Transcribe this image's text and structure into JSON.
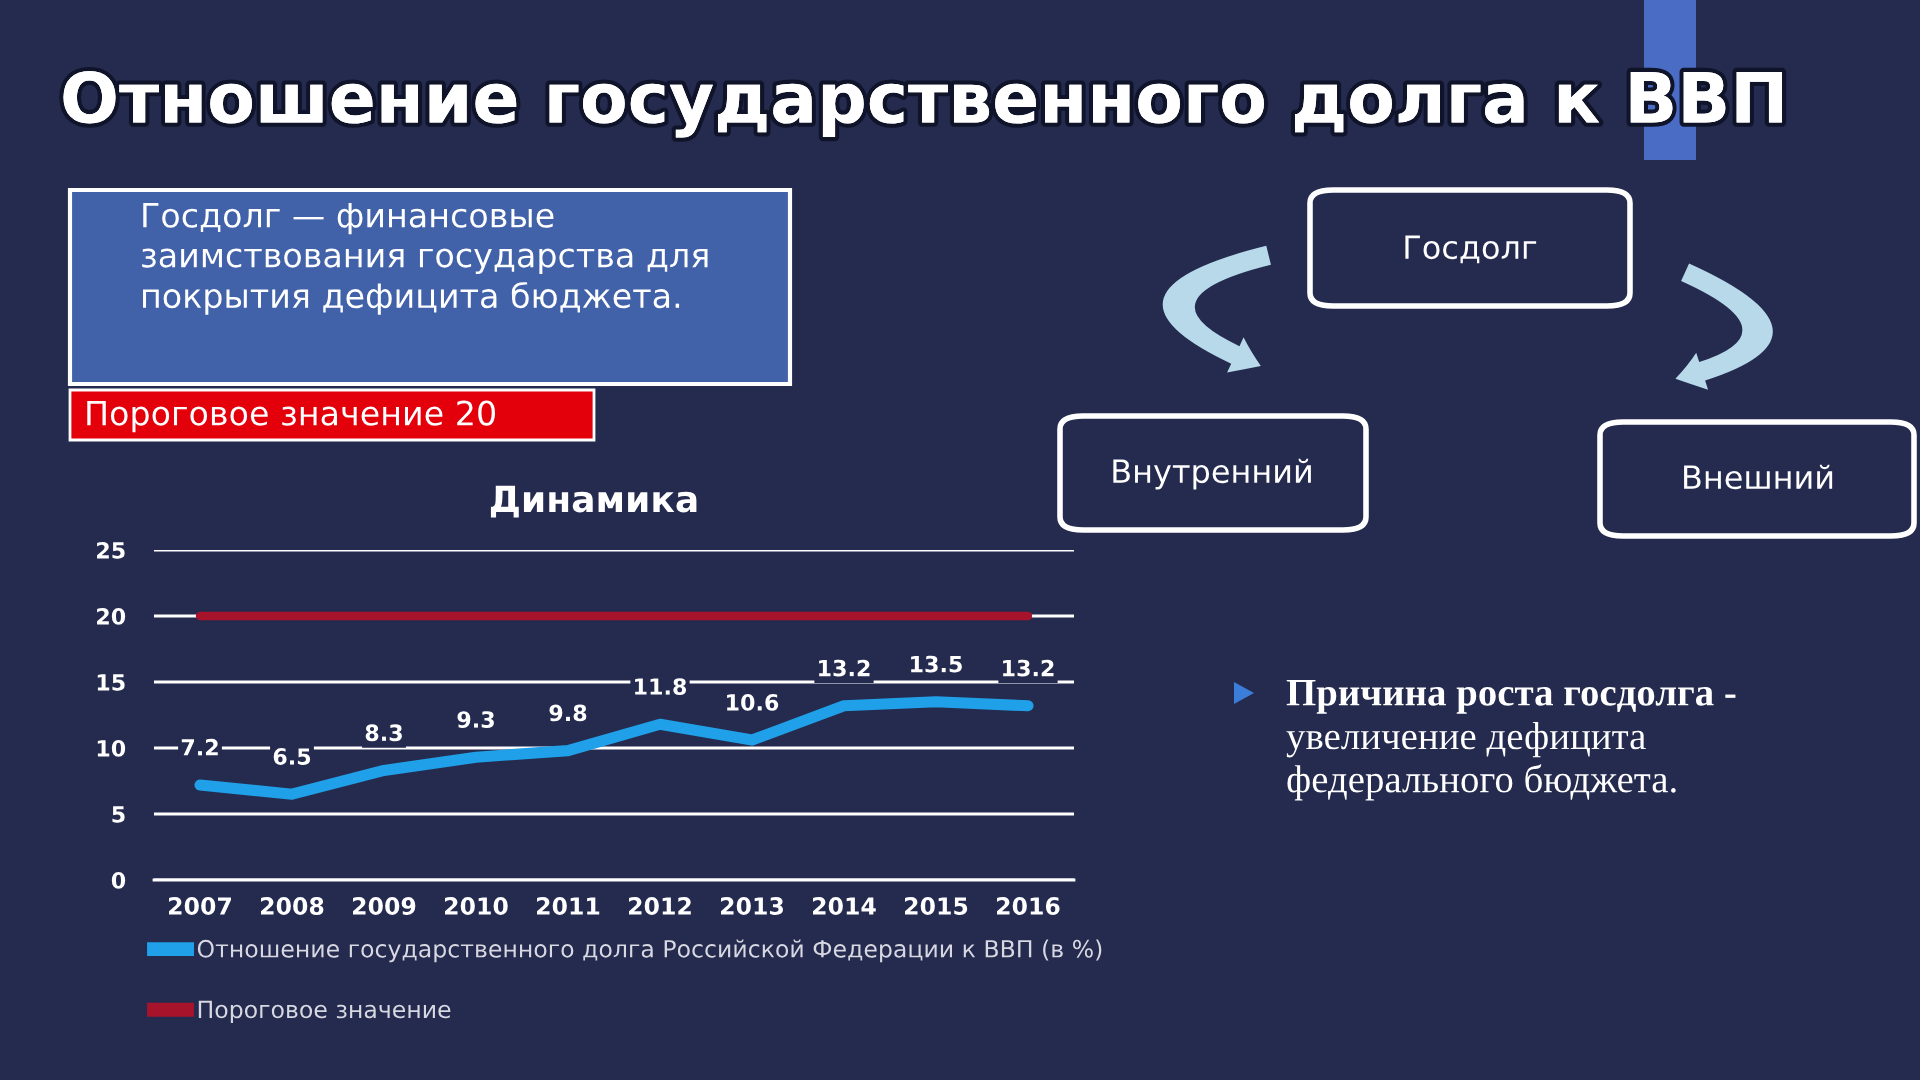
{
  "chart_data": {
    "type": "line",
    "title": "Отношение государственного долга к ВВП",
    "subtitle": "Динамика",
    "categories": [
      "2007",
      "2008",
      "2009",
      "2010",
      "2011",
      "2012",
      "2013",
      "2014",
      "2015",
      "2016"
    ],
    "series": [
      {
        "name": "Отношение государственного долга Российской Федерации к ВВП (в %)",
        "color": "#1fa0e8",
        "values": [
          7.2,
          6.5,
          8.3,
          9.3,
          9.8,
          11.8,
          10.6,
          13.2,
          13.5,
          13.2
        ],
        "value_labels": [
          "7.2",
          "6.5",
          "8.3",
          "9.3",
          "9.8",
          "11.8",
          "10.6",
          "13.2",
          "13.5",
          "13.2"
        ]
      },
      {
        "name": "Пороговое значение",
        "color": "#a8132c",
        "values": [
          20,
          20,
          20,
          20,
          20,
          20,
          20,
          20,
          20,
          20
        ]
      }
    ],
    "ylim": [
      0,
      25
    ],
    "yticks": [
      0,
      5,
      10,
      15,
      20,
      25
    ],
    "grid": "y",
    "legend": "bottom",
    "annotations": [
      "Госдолг — финансовые\nзаимствования государства для\nпокрытия дефицита бюджета.",
      "Пороговое значение 20",
      "Госдолг",
      "Внутренний",
      "Внешний",
      "Причина роста госдолга -",
      "увеличение дефицита\nфедерального бюджета."
    ]
  }
}
